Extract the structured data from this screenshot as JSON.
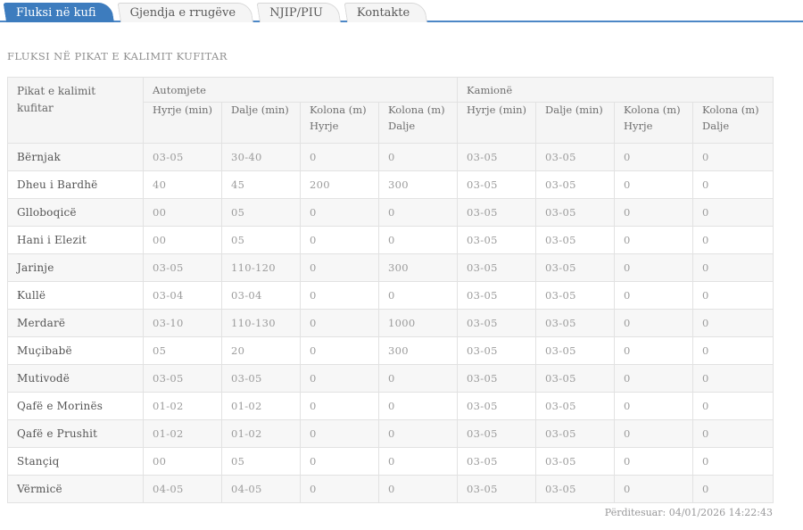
{
  "colors": {
    "accent_blue": "#3d7cbe",
    "tab_line_blue": "#4c87c6",
    "stripe_gray": "#f7f7f7",
    "header_gray": "#f5f5f5"
  },
  "tabs": [
    {
      "label": "Fluksi në kufi",
      "active": true
    },
    {
      "label": "Gjendja e rrugëve",
      "active": false
    },
    {
      "label": "NJIP/PIU",
      "active": false
    },
    {
      "label": "Kontakte",
      "active": false
    }
  ],
  "page_title": "FLUKSI NË PIKAT E KALIMIT KUFITAR",
  "table": {
    "corner_header": "Pikat e kalimit kufitar",
    "groups": [
      {
        "label": "Automjete",
        "columns": [
          "Hyrje (min)",
          "Dalje (min)",
          "Kolona (m) Hyrje",
          "Kolona (m) Dalje"
        ]
      },
      {
        "label": "Kamionë",
        "columns": [
          "Hyrje (min)",
          "Dalje (min)",
          "Kolona (m) Hyrje",
          "Kolona (m) Dalje"
        ]
      }
    ],
    "rows": [
      {
        "name": "Bërnjak",
        "automjete": [
          "03-05",
          "30-40",
          "0",
          "0"
        ],
        "kamione": [
          "03-05",
          "03-05",
          "0",
          "0"
        ]
      },
      {
        "name": "Dheu i Bardhë",
        "automjete": [
          "40",
          "45",
          "200",
          "300"
        ],
        "kamione": [
          "03-05",
          "03-05",
          "0",
          "0"
        ]
      },
      {
        "name": "Glloboqicë",
        "automjete": [
          "00",
          "05",
          "0",
          "0"
        ],
        "kamione": [
          "03-05",
          "03-05",
          "0",
          "0"
        ]
      },
      {
        "name": "Hani i Elezit",
        "automjete": [
          "00",
          "05",
          "0",
          "0"
        ],
        "kamione": [
          "03-05",
          "03-05",
          "0",
          "0"
        ]
      },
      {
        "name": "Jarinje",
        "automjete": [
          "03-05",
          "110-120",
          "0",
          "300"
        ],
        "kamione": [
          "03-05",
          "03-05",
          "0",
          "0"
        ]
      },
      {
        "name": "Kullë",
        "automjete": [
          "03-04",
          "03-04",
          "0",
          "0"
        ],
        "kamione": [
          "03-05",
          "03-05",
          "0",
          "0"
        ]
      },
      {
        "name": "Merdarë",
        "automjete": [
          "03-10",
          "110-130",
          "0",
          "1000"
        ],
        "kamione": [
          "03-05",
          "03-05",
          "0",
          "0"
        ]
      },
      {
        "name": "Muçibabë",
        "automjete": [
          "05",
          "20",
          "0",
          "300"
        ],
        "kamione": [
          "03-05",
          "03-05",
          "0",
          "0"
        ]
      },
      {
        "name": "Mutivodë",
        "automjete": [
          "03-05",
          "03-05",
          "0",
          "0"
        ],
        "kamione": [
          "03-05",
          "03-05",
          "0",
          "0"
        ]
      },
      {
        "name": "Qafë e Morinës",
        "automjete": [
          "01-02",
          "01-02",
          "0",
          "0"
        ],
        "kamione": [
          "03-05",
          "03-05",
          "0",
          "0"
        ]
      },
      {
        "name": "Qafë e Prushit",
        "automjete": [
          "01-02",
          "01-02",
          "0",
          "0"
        ],
        "kamione": [
          "03-05",
          "03-05",
          "0",
          "0"
        ]
      },
      {
        "name": "Stançiq",
        "automjete": [
          "00",
          "05",
          "0",
          "0"
        ],
        "kamione": [
          "03-05",
          "03-05",
          "0",
          "0"
        ]
      },
      {
        "name": "Vërmicë",
        "automjete": [
          "04-05",
          "04-05",
          "0",
          "0"
        ],
        "kamione": [
          "03-05",
          "03-05",
          "0",
          "0"
        ]
      }
    ]
  },
  "footer": {
    "updated_text": "Përditesuar: 04/01/2026 14:22:43"
  }
}
